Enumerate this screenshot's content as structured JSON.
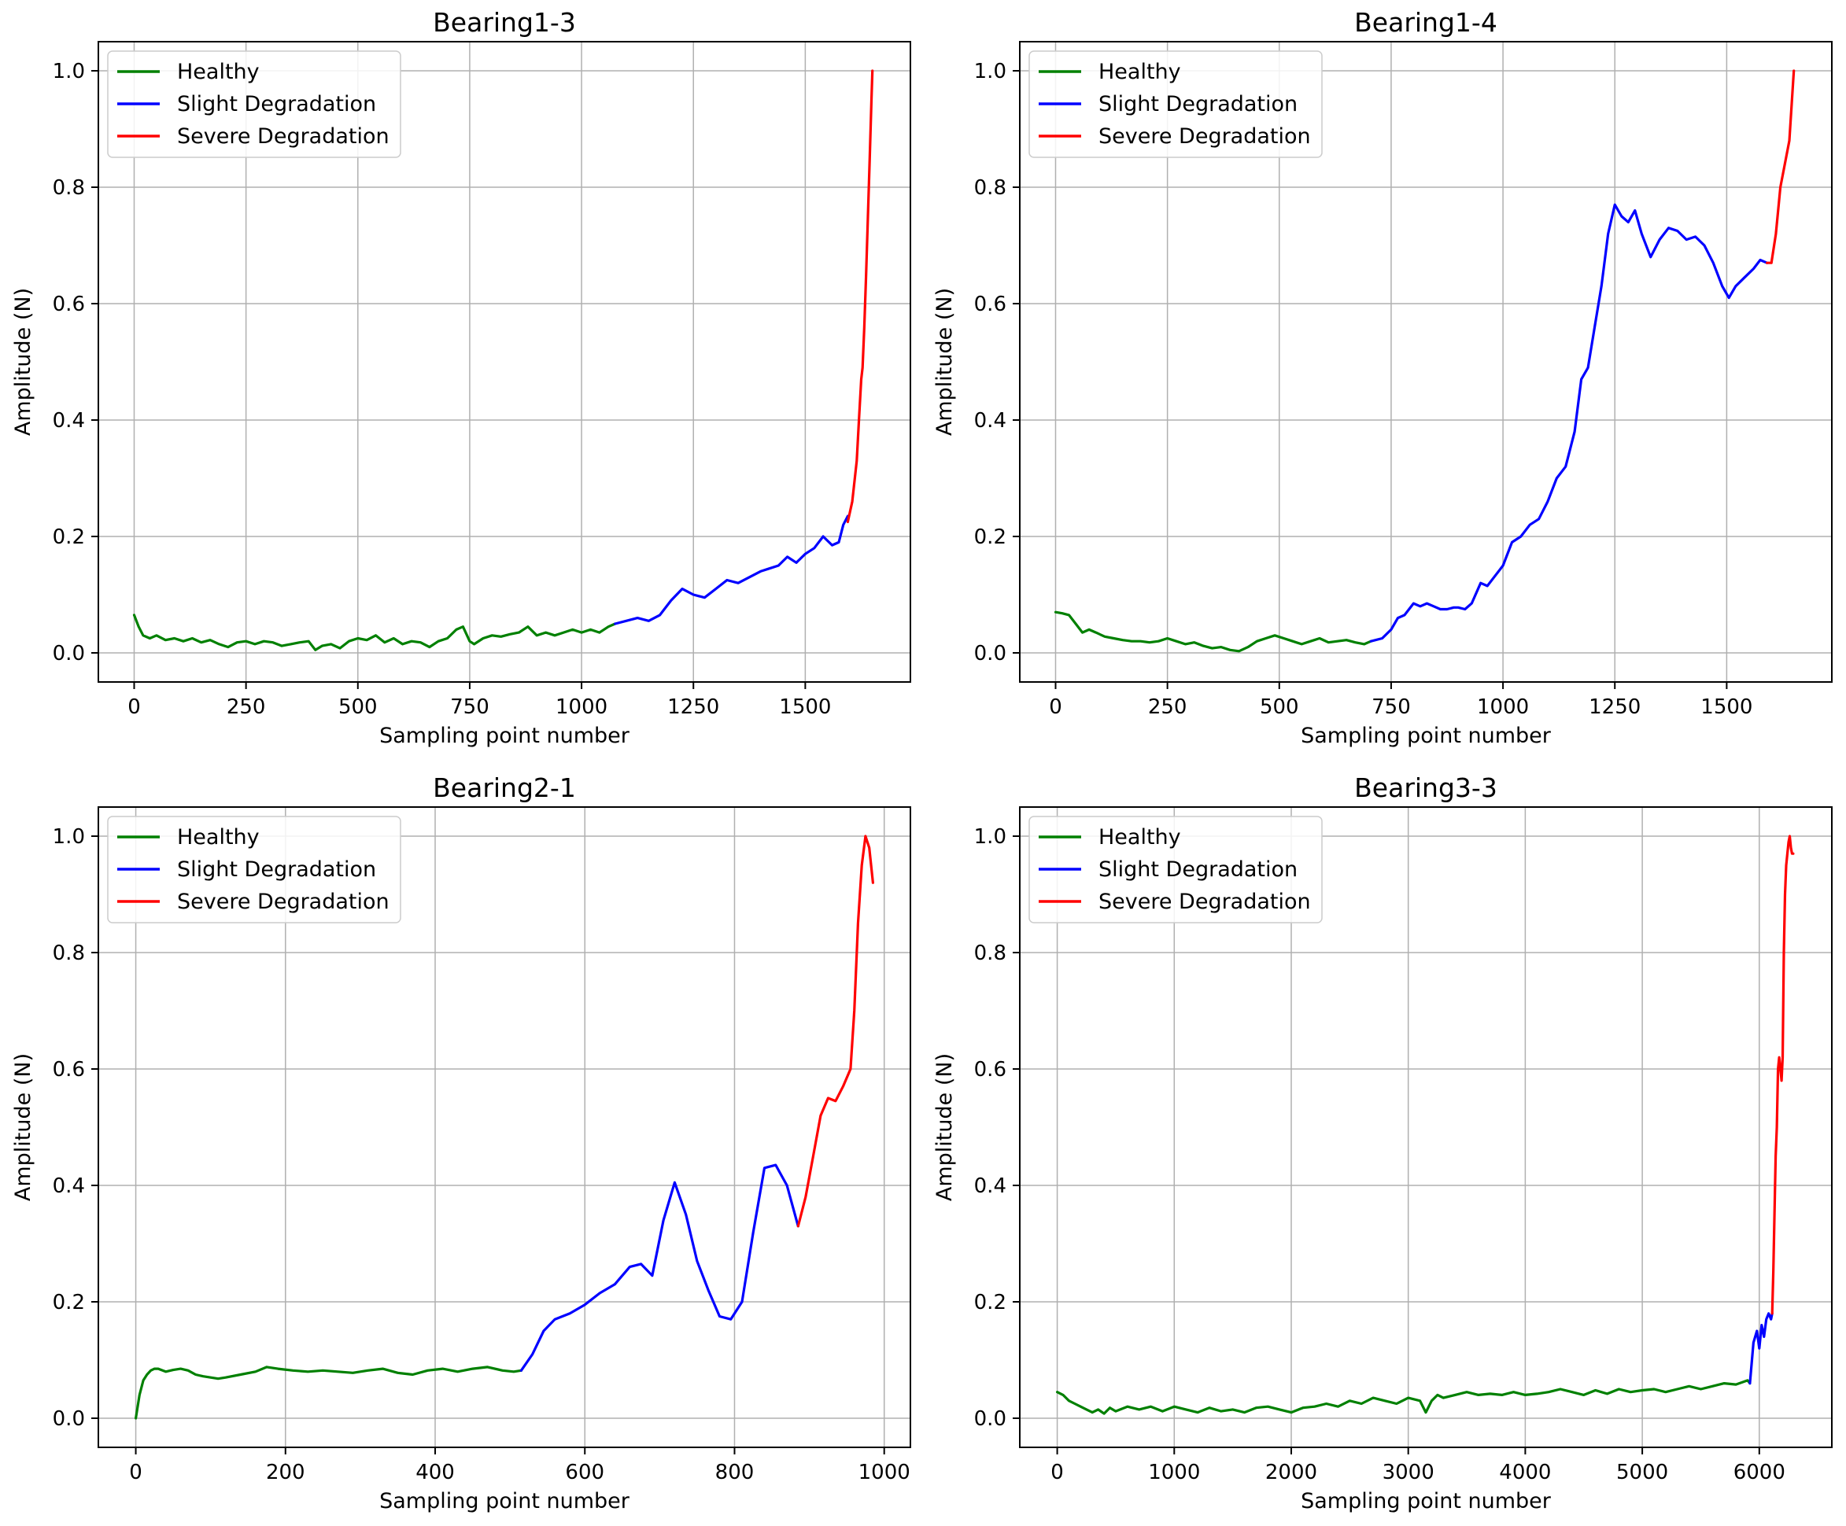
{
  "legend": [
    {
      "label": "Healthy",
      "color": "#008000"
    },
    {
      "label": "Slight Degradation",
      "color": "#0000ff"
    },
    {
      "label": "Severe Degradation",
      "color": "#ff0000"
    }
  ],
  "chart_data": [
    {
      "type": "line",
      "title": "Bearing1-3",
      "xlabel": "Sampling point number",
      "ylabel": "Amplitude (N)",
      "xlim": [
        -80,
        1735
      ],
      "ylim": [
        -0.05,
        1.05
      ],
      "xticks": [
        0,
        250,
        500,
        750,
        1000,
        1250,
        1500
      ],
      "yticks": [
        0.0,
        0.2,
        0.4,
        0.6,
        0.8,
        1.0
      ],
      "grid": true,
      "legend_position": "top-left",
      "series": [
        {
          "name": "Healthy",
          "color": "#008000",
          "x": [
            0,
            10,
            20,
            35,
            50,
            70,
            90,
            110,
            130,
            150,
            170,
            190,
            210,
            230,
            250,
            270,
            290,
            310,
            330,
            350,
            370,
            390,
            405,
            420,
            440,
            460,
            480,
            500,
            520,
            540,
            560,
            580,
            600,
            620,
            640,
            660,
            680,
            700,
            720,
            735,
            750,
            760,
            780,
            800,
            820,
            840,
            860,
            880,
            900,
            920,
            940,
            960,
            980,
            1000,
            1020,
            1040,
            1060,
            1075
          ],
          "y": [
            0.065,
            0.045,
            0.03,
            0.025,
            0.03,
            0.022,
            0.025,
            0.02,
            0.025,
            0.018,
            0.022,
            0.015,
            0.01,
            0.018,
            0.02,
            0.015,
            0.02,
            0.018,
            0.012,
            0.015,
            0.018,
            0.02,
            0.005,
            0.012,
            0.015,
            0.008,
            0.02,
            0.025,
            0.022,
            0.03,
            0.018,
            0.025,
            0.015,
            0.02,
            0.018,
            0.01,
            0.02,
            0.025,
            0.04,
            0.045,
            0.02,
            0.015,
            0.025,
            0.03,
            0.028,
            0.032,
            0.035,
            0.045,
            0.03,
            0.035,
            0.03,
            0.035,
            0.04,
            0.035,
            0.04,
            0.035,
            0.045,
            0.05
          ]
        },
        {
          "name": "Slight Degradation",
          "color": "#0000ff",
          "x": [
            1075,
            1100,
            1125,
            1150,
            1175,
            1200,
            1225,
            1250,
            1275,
            1300,
            1325,
            1350,
            1375,
            1400,
            1420,
            1440,
            1460,
            1480,
            1500,
            1520,
            1540,
            1560,
            1575,
            1585,
            1595
          ],
          "y": [
            0.05,
            0.055,
            0.06,
            0.055,
            0.065,
            0.09,
            0.11,
            0.1,
            0.095,
            0.11,
            0.125,
            0.12,
            0.13,
            0.14,
            0.145,
            0.15,
            0.165,
            0.155,
            0.17,
            0.18,
            0.2,
            0.185,
            0.19,
            0.22,
            0.235
          ]
        },
        {
          "name": "Severe Degradation",
          "color": "#ff0000",
          "x": [
            1595,
            1605,
            1615,
            1620,
            1625,
            1628,
            1632,
            1636,
            1640,
            1644,
            1648,
            1650
          ],
          "y": [
            0.225,
            0.26,
            0.33,
            0.4,
            0.47,
            0.49,
            0.56,
            0.65,
            0.75,
            0.85,
            0.95,
            1.0
          ]
        }
      ]
    },
    {
      "type": "line",
      "title": "Bearing1-4",
      "xlabel": "Sampling point number",
      "ylabel": "Amplitude (N)",
      "xlim": [
        -80,
        1735
      ],
      "ylim": [
        -0.05,
        1.05
      ],
      "xticks": [
        0,
        250,
        500,
        750,
        1000,
        1250,
        1500
      ],
      "yticks": [
        0.0,
        0.2,
        0.4,
        0.6,
        0.8,
        1.0
      ],
      "grid": true,
      "legend_position": "top-left",
      "series": [
        {
          "name": "Healthy",
          "color": "#008000",
          "x": [
            0,
            15,
            30,
            45,
            60,
            75,
            90,
            110,
            130,
            150,
            170,
            190,
            210,
            230,
            250,
            270,
            290,
            310,
            330,
            350,
            370,
            390,
            410,
            430,
            450,
            470,
            490,
            510,
            530,
            550,
            570,
            590,
            610,
            630,
            650,
            670,
            690,
            705
          ],
          "y": [
            0.07,
            0.068,
            0.065,
            0.05,
            0.035,
            0.04,
            0.035,
            0.028,
            0.025,
            0.022,
            0.02,
            0.02,
            0.018,
            0.02,
            0.025,
            0.02,
            0.015,
            0.018,
            0.012,
            0.008,
            0.01,
            0.005,
            0.003,
            0.01,
            0.02,
            0.025,
            0.03,
            0.025,
            0.02,
            0.015,
            0.02,
            0.025,
            0.018,
            0.02,
            0.022,
            0.018,
            0.015,
            0.02
          ]
        },
        {
          "name": "Slight Degradation",
          "color": "#0000ff",
          "x": [
            705,
            730,
            750,
            765,
            780,
            800,
            815,
            830,
            845,
            860,
            875,
            890,
            900,
            915,
            930,
            950,
            965,
            980,
            1000,
            1020,
            1040,
            1060,
            1080,
            1100,
            1120,
            1140,
            1160,
            1175,
            1190,
            1205,
            1220,
            1235,
            1250,
            1265,
            1280,
            1295,
            1310,
            1330,
            1350,
            1370,
            1390,
            1410,
            1430,
            1450,
            1470,
            1490,
            1505,
            1520,
            1540,
            1560,
            1575,
            1590
          ],
          "y": [
            0.02,
            0.025,
            0.04,
            0.06,
            0.065,
            0.085,
            0.08,
            0.085,
            0.08,
            0.075,
            0.075,
            0.078,
            0.078,
            0.075,
            0.085,
            0.12,
            0.115,
            0.13,
            0.15,
            0.19,
            0.2,
            0.22,
            0.23,
            0.26,
            0.3,
            0.32,
            0.38,
            0.47,
            0.49,
            0.56,
            0.63,
            0.72,
            0.77,
            0.75,
            0.74,
            0.76,
            0.72,
            0.68,
            0.71,
            0.73,
            0.725,
            0.71,
            0.715,
            0.7,
            0.67,
            0.63,
            0.61,
            0.63,
            0.645,
            0.66,
            0.675,
            0.67
          ]
        },
        {
          "name": "Severe Degradation",
          "color": "#ff0000",
          "x": [
            1590,
            1600,
            1610,
            1620,
            1630,
            1640,
            1650
          ],
          "y": [
            0.67,
            0.67,
            0.72,
            0.8,
            0.84,
            0.88,
            1.0
          ]
        }
      ]
    },
    {
      "type": "line",
      "title": "Bearing2-1",
      "xlabel": "Sampling point number",
      "ylabel": "Amplitude (N)",
      "xlim": [
        -50,
        1035
      ],
      "ylim": [
        -0.05,
        1.05
      ],
      "xticks": [
        0,
        200,
        400,
        600,
        800,
        1000
      ],
      "yticks": [
        0.0,
        0.2,
        0.4,
        0.6,
        0.8,
        1.0
      ],
      "grid": true,
      "legend_position": "top-left",
      "series": [
        {
          "name": "Healthy",
          "color": "#008000",
          "x": [
            0,
            5,
            10,
            15,
            20,
            25,
            30,
            40,
            50,
            60,
            70,
            80,
            90,
            100,
            110,
            120,
            140,
            160,
            175,
            190,
            210,
            230,
            250,
            270,
            290,
            310,
            330,
            350,
            370,
            390,
            410,
            430,
            450,
            470,
            490,
            505,
            515
          ],
          "y": [
            0.0,
            0.04,
            0.065,
            0.075,
            0.082,
            0.085,
            0.085,
            0.08,
            0.083,
            0.085,
            0.082,
            0.075,
            0.072,
            0.07,
            0.068,
            0.07,
            0.075,
            0.08,
            0.088,
            0.085,
            0.082,
            0.08,
            0.082,
            0.08,
            0.078,
            0.082,
            0.085,
            0.078,
            0.075,
            0.082,
            0.085,
            0.08,
            0.085,
            0.088,
            0.082,
            0.08,
            0.082
          ]
        },
        {
          "name": "Slight Degradation",
          "color": "#0000ff",
          "x": [
            515,
            530,
            545,
            560,
            580,
            600,
            620,
            640,
            660,
            675,
            690,
            705,
            720,
            735,
            750,
            765,
            780,
            795,
            810,
            825,
            840,
            855,
            870,
            885
          ],
          "y": [
            0.082,
            0.11,
            0.15,
            0.17,
            0.18,
            0.195,
            0.215,
            0.23,
            0.26,
            0.265,
            0.245,
            0.34,
            0.405,
            0.35,
            0.27,
            0.22,
            0.175,
            0.17,
            0.2,
            0.32,
            0.43,
            0.435,
            0.4,
            0.33
          ]
        },
        {
          "name": "Severe Degradation",
          "color": "#ff0000",
          "x": [
            885,
            895,
            905,
            915,
            925,
            935,
            945,
            955,
            960,
            965,
            970,
            975,
            980,
            985
          ],
          "y": [
            0.33,
            0.38,
            0.45,
            0.52,
            0.55,
            0.545,
            0.57,
            0.6,
            0.7,
            0.85,
            0.95,
            1.0,
            0.98,
            0.92
          ]
        }
      ]
    },
    {
      "type": "line",
      "title": "Bearing3-3",
      "xlabel": "Sampling point number",
      "ylabel": "Amplitude (N)",
      "xlim": [
        -320,
        6620
      ],
      "ylim": [
        -0.05,
        1.05
      ],
      "xticks": [
        0,
        1000,
        2000,
        3000,
        4000,
        5000,
        6000
      ],
      "yticks": [
        0.0,
        0.2,
        0.4,
        0.6,
        0.8,
        1.0
      ],
      "grid": true,
      "legend_position": "top-left",
      "series": [
        {
          "name": "Healthy",
          "color": "#008000",
          "x": [
            0,
            50,
            100,
            150,
            200,
            250,
            300,
            350,
            400,
            450,
            500,
            600,
            700,
            800,
            900,
            1000,
            1100,
            1200,
            1300,
            1400,
            1500,
            1600,
            1700,
            1800,
            1900,
            2000,
            2100,
            2200,
            2300,
            2400,
            2500,
            2600,
            2700,
            2800,
            2900,
            3000,
            3100,
            3150,
            3200,
            3250,
            3300,
            3400,
            3500,
            3600,
            3700,
            3800,
            3900,
            4000,
            4100,
            4200,
            4300,
            4400,
            4500,
            4600,
            4700,
            4800,
            4900,
            5000,
            5100,
            5200,
            5300,
            5400,
            5500,
            5600,
            5700,
            5800,
            5900,
            5920
          ],
          "y": [
            0.045,
            0.04,
            0.03,
            0.025,
            0.02,
            0.015,
            0.01,
            0.015,
            0.008,
            0.018,
            0.012,
            0.02,
            0.015,
            0.02,
            0.012,
            0.02,
            0.015,
            0.01,
            0.018,
            0.012,
            0.015,
            0.01,
            0.018,
            0.02,
            0.015,
            0.01,
            0.018,
            0.02,
            0.025,
            0.02,
            0.03,
            0.025,
            0.035,
            0.03,
            0.025,
            0.035,
            0.03,
            0.01,
            0.03,
            0.04,
            0.035,
            0.04,
            0.045,
            0.04,
            0.042,
            0.04,
            0.045,
            0.04,
            0.042,
            0.045,
            0.05,
            0.045,
            0.04,
            0.048,
            0.042,
            0.05,
            0.045,
            0.048,
            0.05,
            0.045,
            0.05,
            0.055,
            0.05,
            0.055,
            0.06,
            0.058,
            0.065,
            0.06
          ]
        },
        {
          "name": "Slight Degradation",
          "color": "#0000ff",
          "x": [
            5920,
            5950,
            5980,
            6000,
            6020,
            6040,
            6060,
            6080,
            6100,
            6110
          ],
          "y": [
            0.06,
            0.13,
            0.15,
            0.12,
            0.16,
            0.14,
            0.17,
            0.18,
            0.17,
            0.18
          ]
        },
        {
          "name": "Severe Degradation",
          "color": "#ff0000",
          "x": [
            6110,
            6120,
            6130,
            6140,
            6150,
            6160,
            6170,
            6180,
            6190,
            6200,
            6210,
            6220,
            6230,
            6240,
            6250,
            6260,
            6270,
            6280,
            6290
          ],
          "y": [
            0.18,
            0.25,
            0.35,
            0.45,
            0.5,
            0.6,
            0.62,
            0.6,
            0.58,
            0.62,
            0.8,
            0.9,
            0.95,
            0.97,
            0.99,
            1.0,
            0.98,
            0.97,
            0.97
          ]
        }
      ]
    }
  ]
}
